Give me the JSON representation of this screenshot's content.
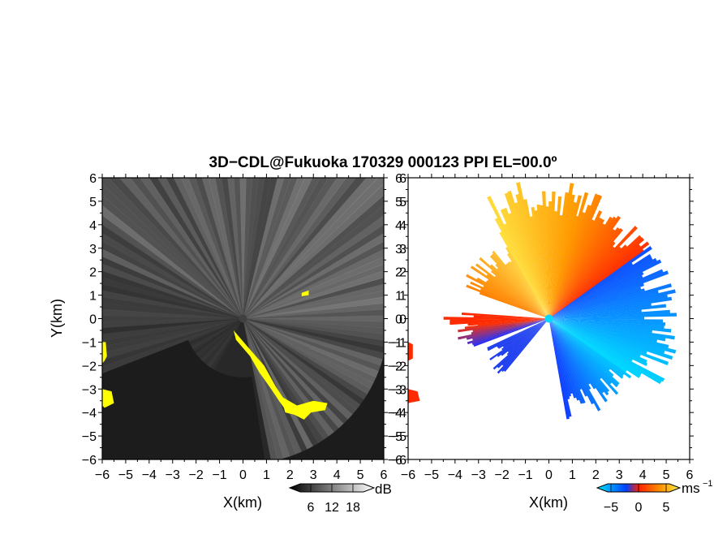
{
  "figure": {
    "title": "3D−CDL@Fukuoka 170329 000123 PPI EL=00.0º"
  },
  "chart_data": [
    {
      "type": "heatmap",
      "panel": "left",
      "xlabel": "X(km)",
      "ylabel": "Y(km)",
      "xlim": [
        -6,
        6
      ],
      "ylim": [
        -6,
        6
      ],
      "xticks": [
        "−6",
        "−5",
        "−4",
        "−3",
        "−2",
        "−1",
        "0",
        "1",
        "2",
        "3",
        "4",
        "5",
        "6"
      ],
      "yticks": [
        "−6",
        "−5",
        "−4",
        "−3",
        "−2",
        "−1",
        "0",
        "1",
        "2",
        "3",
        "4",
        "5",
        "6"
      ],
      "colorbar": {
        "unit": "dB",
        "tick_labels": [
          "6",
          "12",
          "18"
        ],
        "tick_values": [
          6,
          12,
          18
        ],
        "range": [
          0,
          24
        ],
        "colors": [
          "#000000",
          "#ffffff"
        ]
      },
      "masked_color": "#ffff00",
      "scan_origin": [
        0,
        0
      ],
      "grid": false
    },
    {
      "type": "heatmap",
      "panel": "right",
      "xlabel": "X(km)",
      "ylabel": "",
      "xlim": [
        -6,
        6
      ],
      "ylim": [
        -6,
        6
      ],
      "xticks": [
        "−6",
        "−5",
        "−4",
        "−3",
        "−2",
        "−1",
        "0",
        "1",
        "2",
        "3",
        "4",
        "5",
        "6"
      ],
      "yticks": [
        "−6",
        "−5",
        "−4",
        "−3",
        "−2",
        "−1",
        "0",
        "1",
        "2",
        "3",
        "4",
        "5",
        "6"
      ],
      "colorbar": {
        "unit": "ms",
        "unit_exponent": "−1",
        "tick_labels": [
          "−5",
          "0",
          "5"
        ],
        "tick_values": [
          -5,
          0,
          5
        ],
        "range": [
          -7.5,
          7.5
        ],
        "colors": [
          "#00e5ff",
          "#0040ff",
          "#ff2000",
          "#ff8c00",
          "#ffee44"
        ]
      },
      "scan_origin": [
        0,
        0
      ],
      "grid": false
    }
  ]
}
